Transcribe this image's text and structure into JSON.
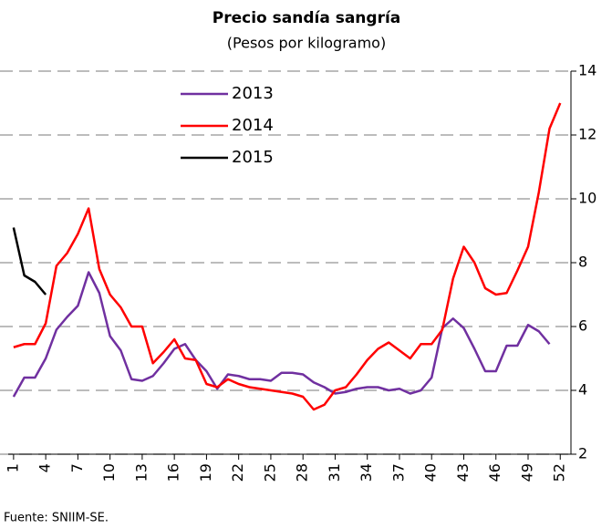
{
  "chart_data": {
    "type": "line",
    "title": "Precio sandía sangría",
    "subtitle": "(Pesos por kilogramo)",
    "note": "Fuente: SNIIM-SE.",
    "x": [
      1,
      2,
      3,
      4,
      5,
      6,
      7,
      8,
      9,
      10,
      11,
      12,
      13,
      14,
      15,
      16,
      17,
      18,
      19,
      20,
      21,
      22,
      23,
      24,
      25,
      26,
      27,
      28,
      29,
      30,
      31,
      32,
      33,
      34,
      35,
      36,
      37,
      38,
      39,
      40,
      41,
      42,
      43,
      44,
      45,
      46,
      47,
      48,
      49,
      50,
      51,
      52
    ],
    "xlim": [
      0.5,
      53
    ],
    "xticks": [
      1,
      4,
      7,
      10,
      13,
      16,
      19,
      22,
      25,
      28,
      31,
      34,
      37,
      40,
      43,
      46,
      49,
      52
    ],
    "ylim": [
      2,
      14
    ],
    "yticks": [
      2,
      4,
      6,
      8,
      10,
      12,
      14
    ],
    "grid": true,
    "legend": "upper left",
    "series": [
      {
        "name": "2013",
        "color": "#7030a0",
        "values": [
          3.8,
          4.4,
          4.4,
          5.0,
          5.9,
          6.3,
          6.65,
          7.7,
          7.05,
          5.7,
          5.25,
          4.35,
          4.3,
          4.45,
          4.85,
          5.3,
          5.45,
          4.95,
          4.6,
          4.05,
          4.5,
          4.45,
          4.35,
          4.35,
          4.3,
          4.55,
          4.55,
          4.5,
          4.25,
          4.1,
          3.9,
          3.95,
          4.05,
          4.1,
          4.1,
          4.0,
          4.05,
          3.9,
          4.0,
          4.4,
          5.95,
          6.25,
          5.95,
          5.3,
          4.6,
          4.6,
          5.4,
          5.4,
          6.05,
          5.85,
          5.45,
          null
        ]
      },
      {
        "name": "2014",
        "color": "#ff0000",
        "values": [
          5.35,
          5.45,
          5.45,
          6.1,
          7.9,
          8.3,
          8.9,
          9.7,
          7.8,
          7.0,
          6.6,
          6.0,
          6.0,
          4.85,
          5.2,
          5.6,
          5.0,
          4.95,
          4.2,
          4.1,
          4.35,
          4.2,
          4.1,
          4.05,
          4.0,
          3.95,
          3.9,
          3.8,
          3.4,
          3.55,
          4.0,
          4.1,
          4.5,
          4.95,
          5.3,
          5.5,
          5.25,
          5.0,
          5.45,
          5.45,
          5.9,
          7.5,
          8.5,
          8.0,
          7.2,
          7.0,
          7.05,
          7.75,
          8.5,
          10.2,
          12.2,
          13.0
        ]
      },
      {
        "name": "2015",
        "color": "#000000",
        "values": [
          9.1,
          7.6,
          7.4,
          7.0,
          null,
          null,
          null,
          null,
          null,
          null,
          null,
          null,
          null,
          null,
          null,
          null,
          null,
          null,
          null,
          null,
          null,
          null,
          null,
          null,
          null,
          null,
          null,
          null,
          null,
          null,
          null,
          null,
          null,
          null,
          null,
          null,
          null,
          null,
          null,
          null,
          null,
          null,
          null,
          null,
          null,
          null,
          null,
          null,
          null,
          null,
          null,
          null
        ]
      }
    ]
  }
}
